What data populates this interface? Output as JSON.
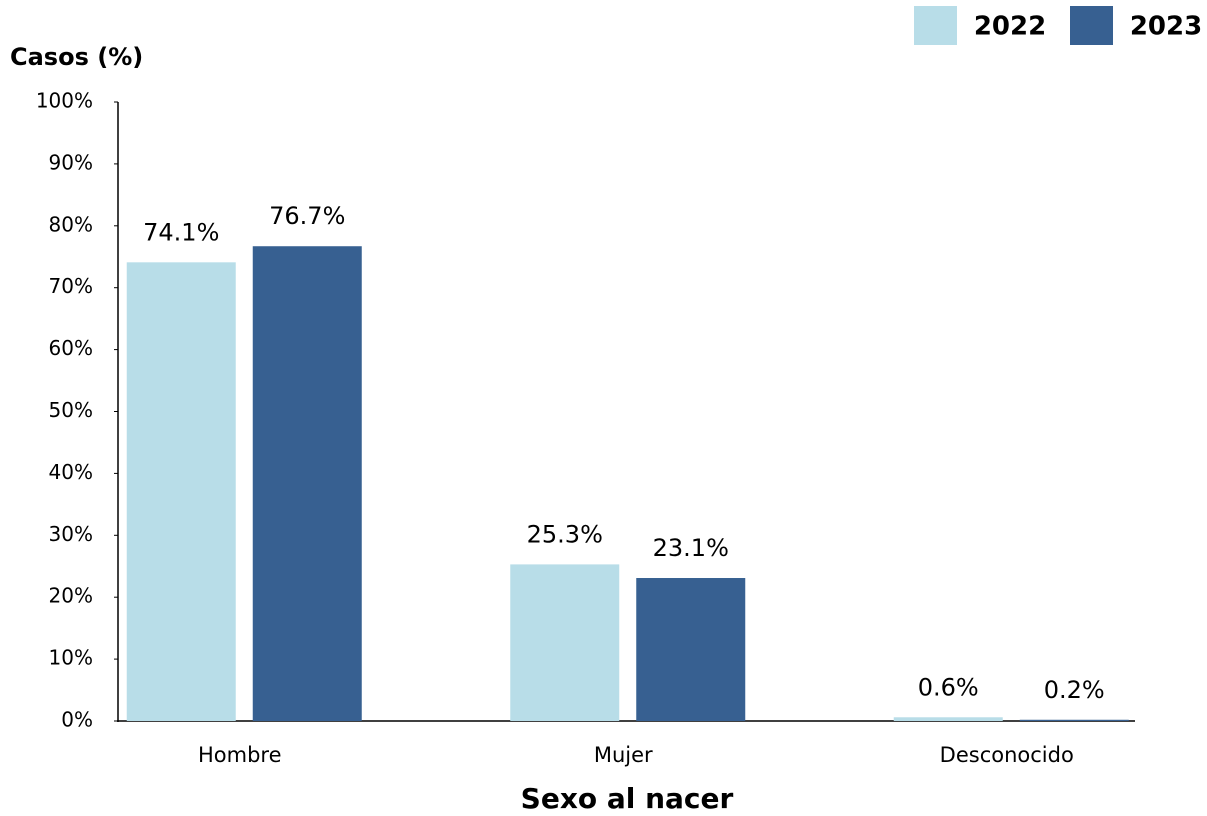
{
  "chart_data": {
    "type": "bar",
    "y_axis_title": "Casos (%)",
    "x_axis_title": "Sexo al nacer",
    "categories": [
      "Hombre",
      "Mujer",
      "Desconocido"
    ],
    "series": [
      {
        "name": "2022",
        "color": "#b8dde8",
        "values": [
          74.1,
          25.3,
          0.6
        ],
        "value_labels": [
          "74.1%",
          "25.3%",
          "0.6%"
        ]
      },
      {
        "name": "2023",
        "color": "#376091",
        "values": [
          76.7,
          23.1,
          0.2
        ],
        "value_labels": [
          "76.7%",
          "23.1%",
          "0.2%"
        ]
      }
    ],
    "ylim": [
      0,
      100
    ],
    "yticks": [
      {
        "value": 0,
        "label": "0%"
      },
      {
        "value": 10,
        "label": "10%"
      },
      {
        "value": 20,
        "label": "20%"
      },
      {
        "value": 30,
        "label": "30%"
      },
      {
        "value": 40,
        "label": "40%"
      },
      {
        "value": 50,
        "label": "50%"
      },
      {
        "value": 60,
        "label": "60%"
      },
      {
        "value": 70,
        "label": "70%"
      },
      {
        "value": 80,
        "label": "80%"
      },
      {
        "value": 90,
        "label": "90%"
      },
      {
        "value": 100,
        "label": "100%"
      }
    ],
    "legend_position": "top-right",
    "grid": false
  }
}
